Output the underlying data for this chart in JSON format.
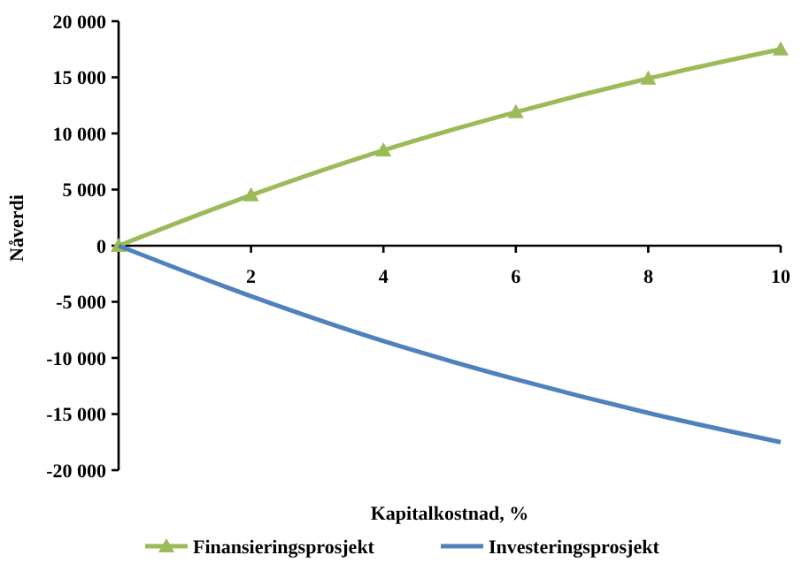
{
  "chart_data": {
    "type": "line",
    "xlabel": "Kapitalkostnad, %",
    "ylabel": "Nåverdi",
    "x": [
      0,
      2,
      4,
      6,
      8,
      10
    ],
    "series": [
      {
        "name": "Finansieringsprosjekt",
        "color": "#9bbb59",
        "marker": "triangle",
        "values": [
          0,
          4500,
          8500,
          11900,
          14900,
          17500
        ]
      },
      {
        "name": "Investeringsprosjekt",
        "color": "#4f81bd",
        "marker": "none",
        "values": [
          0,
          -4500,
          -8500,
          -11900,
          -14900,
          -17500
        ]
      }
    ],
    "xlim": [
      0,
      10
    ],
    "xticks": [
      2,
      4,
      6,
      8,
      10
    ],
    "ylim": [
      -20000,
      20000
    ],
    "yticks": [
      {
        "value": -20000,
        "label": "-20 000"
      },
      {
        "value": -15000,
        "label": "-15 000"
      },
      {
        "value": -10000,
        "label": "-10 000"
      },
      {
        "value": -5000,
        "label": "-5 000"
      },
      0,
      {
        "value": 5000,
        "label": "5 000"
      },
      {
        "value": 10000,
        "label": "10 000"
      },
      {
        "value": 15000,
        "label": "15 000"
      },
      {
        "value": 20000,
        "label": "20 000"
      }
    ],
    "grid": false,
    "legend": "bottom",
    "line_style": "solid"
  }
}
